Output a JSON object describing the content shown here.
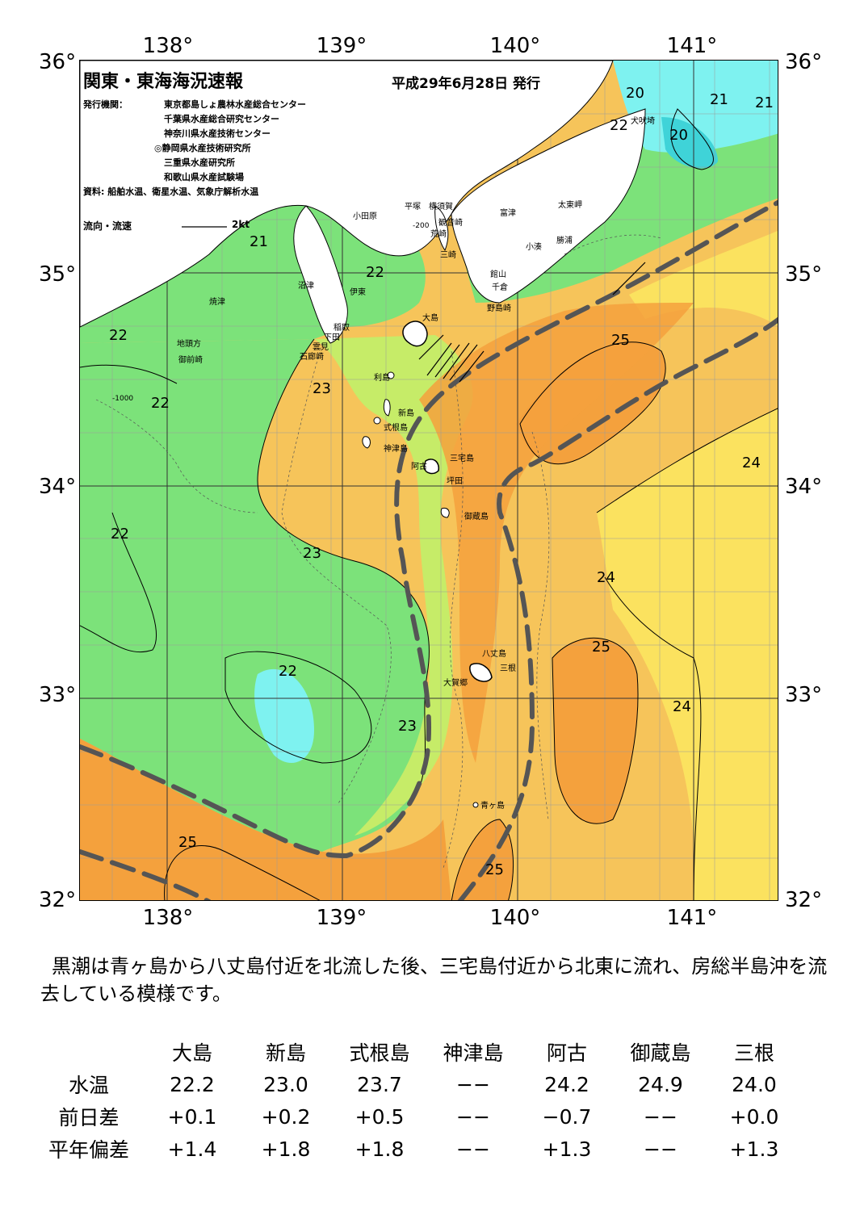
{
  "map": {
    "lat_labels": [
      "36°",
      "35°",
      "34°",
      "33°",
      "32°"
    ],
    "lon_labels": [
      "138°",
      "139°",
      "140°",
      "141°"
    ],
    "title": "関東・東海海況速報",
    "issue_date": "平成29年6月28日 発行",
    "publishers_label": "発行機関：",
    "publishers": [
      "東京都島しょ農林水産総合センター",
      "千葉県水産総合研究センター",
      "神奈川県水産技術センター",
      "◎静岡県水産技術研究所",
      "三重県水産研究所",
      "和歌山県水産試験場"
    ],
    "sources": "資料: 船舶水温、衛星水温、気象庁解析水温",
    "legend_label": "流向・流速",
    "legend_speed": "2kt",
    "colors": {
      "land": "#ffffff",
      "t20": "#3fd3d8",
      "t21": "#7ef2f0",
      "t22": "#7ce27a",
      "t23": "#c6ec68",
      "t23_5": "#f2e766",
      "t24": "#fbe25f",
      "t24_5": "#f6c45a",
      "t25": "#f4a13d",
      "kuroshio_axis": "#555555"
    },
    "place_names": [
      "小田原",
      "平塚",
      "横須賀",
      "観音崎",
      "荒崎",
      "三崎",
      "富津",
      "太東岬",
      "勝浦",
      "小湊",
      "館山",
      "千倉",
      "野島崎",
      "犬吠埼",
      "沼津",
      "伊東",
      "焼津",
      "稲取",
      "下田",
      "雲見",
      "石廊崎",
      "地頭方",
      "御前崎",
      "大島",
      "利島",
      "新島",
      "式根島",
      "神津島",
      "三宅島",
      "阿古",
      "坪田",
      "御蔵島",
      "八丈島",
      "三根",
      "大賀郷",
      "青ヶ島"
    ],
    "isotherm_labels": [
      "20",
      "20",
      "21",
      "21",
      "21",
      "22",
      "22",
      "22",
      "22",
      "22",
      "22",
      "23",
      "23",
      "23",
      "24",
      "24",
      "24",
      "25",
      "25",
      "25",
      "25"
    ],
    "depth_labels": [
      "-200",
      "-1000"
    ]
  },
  "comment": "黒潮は青ヶ島から八丈島付近を北流した後、三宅島付近から北東に流れ、房総半島沖を流去している模様です。",
  "table": {
    "columns": [
      "大島",
      "新島",
      "式根島",
      "神津島",
      "阿古",
      "御蔵島",
      "三根"
    ],
    "rows": [
      {
        "label": "水温",
        "values": [
          "22.2",
          "23.0",
          "23.7",
          "−−",
          "24.2",
          "24.9",
          "24.0"
        ]
      },
      {
        "label": "前日差",
        "values": [
          "+0.1",
          "+0.2",
          "+0.5",
          "−−",
          "−0.7",
          "−−",
          "+0.0"
        ]
      },
      {
        "label": "平年偏差",
        "values": [
          "+1.4",
          "+1.8",
          "+1.8",
          "−−",
          "+1.3",
          "−−",
          "+1.3"
        ]
      }
    ]
  }
}
